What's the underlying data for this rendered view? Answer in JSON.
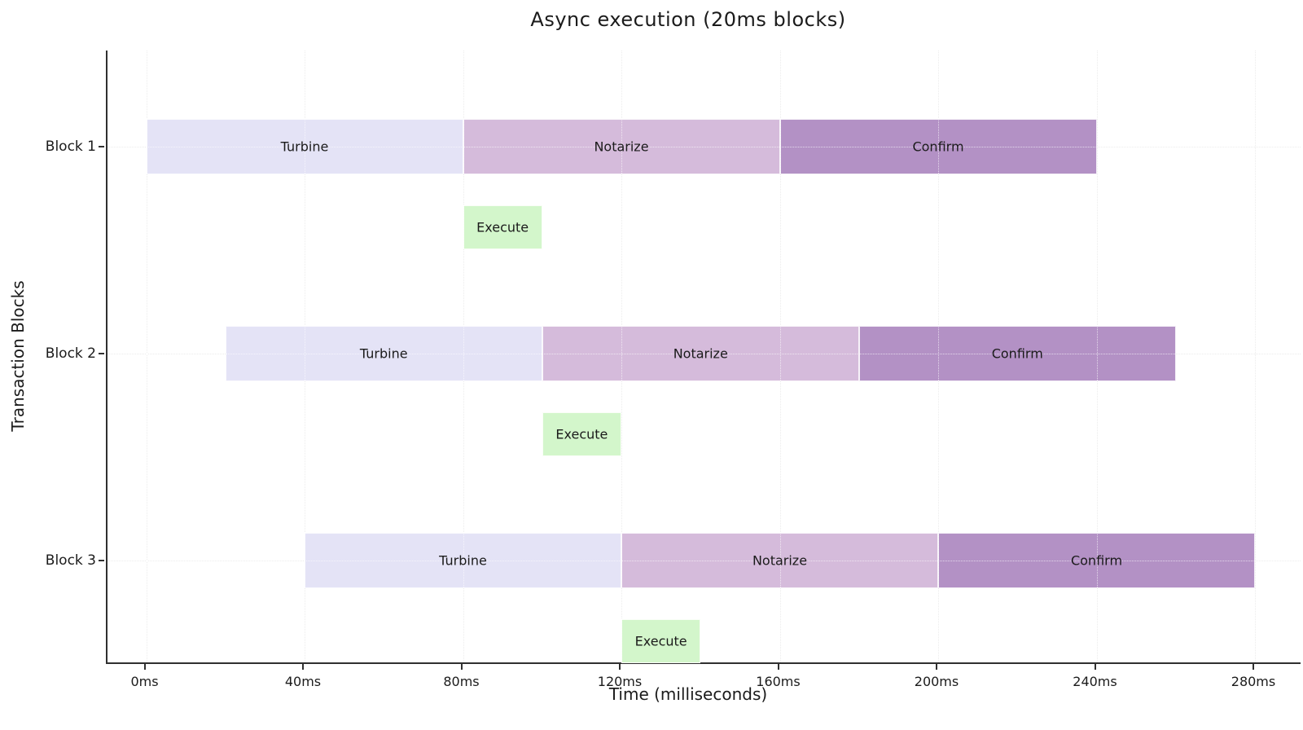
{
  "chart_data": {
    "type": "bar",
    "variant": "gantt",
    "orientation": "horizontal",
    "title": "Async execution (20ms blocks)",
    "xlabel": "Time (milliseconds)",
    "ylabel": "Transaction Blocks",
    "xlim": [
      0,
      280
    ],
    "x_tick_values": [
      0,
      40,
      80,
      120,
      160,
      200,
      240,
      280
    ],
    "x_tick_labels": [
      "0ms",
      "40ms",
      "80ms",
      "120ms",
      "160ms",
      "200ms",
      "240ms",
      "280ms"
    ],
    "categories": [
      "Block 1",
      "Block 2",
      "Block 3"
    ],
    "grid": true,
    "legend": false,
    "rows": [
      {
        "category": "Block 1",
        "segments": [
          {
            "label": "Turbine",
            "start_ms": 0,
            "end_ms": 80,
            "color_key": "turbine"
          },
          {
            "label": "Notarize",
            "start_ms": 80,
            "end_ms": 160,
            "color_key": "notarize"
          },
          {
            "label": "Confirm",
            "start_ms": 160,
            "end_ms": 240,
            "color_key": "confirm"
          }
        ],
        "execute": {
          "label": "Execute",
          "start_ms": 80,
          "end_ms": 100,
          "color_key": "execute"
        }
      },
      {
        "category": "Block 2",
        "segments": [
          {
            "label": "Turbine",
            "start_ms": 20,
            "end_ms": 100,
            "color_key": "turbine"
          },
          {
            "label": "Notarize",
            "start_ms": 100,
            "end_ms": 180,
            "color_key": "notarize"
          },
          {
            "label": "Confirm",
            "start_ms": 180,
            "end_ms": 260,
            "color_key": "confirm"
          }
        ],
        "execute": {
          "label": "Execute",
          "start_ms": 100,
          "end_ms": 120,
          "color_key": "execute"
        }
      },
      {
        "category": "Block 3",
        "segments": [
          {
            "label": "Turbine",
            "start_ms": 40,
            "end_ms": 120,
            "color_key": "turbine"
          },
          {
            "label": "Notarize",
            "start_ms": 120,
            "end_ms": 200,
            "color_key": "notarize"
          },
          {
            "label": "Confirm",
            "start_ms": 200,
            "end_ms": 280,
            "color_key": "confirm"
          }
        ],
        "execute": {
          "label": "Execute",
          "start_ms": 120,
          "end_ms": 140,
          "color_key": "execute"
        }
      }
    ],
    "colors": {
      "turbine": "#e4e3f6",
      "notarize": "#d5bbdb",
      "confirm": "#b391c5",
      "execute": "#d3f6cb",
      "grid": "#c9c9c9",
      "spine": "#303030",
      "text": "#1b1b1b"
    }
  }
}
